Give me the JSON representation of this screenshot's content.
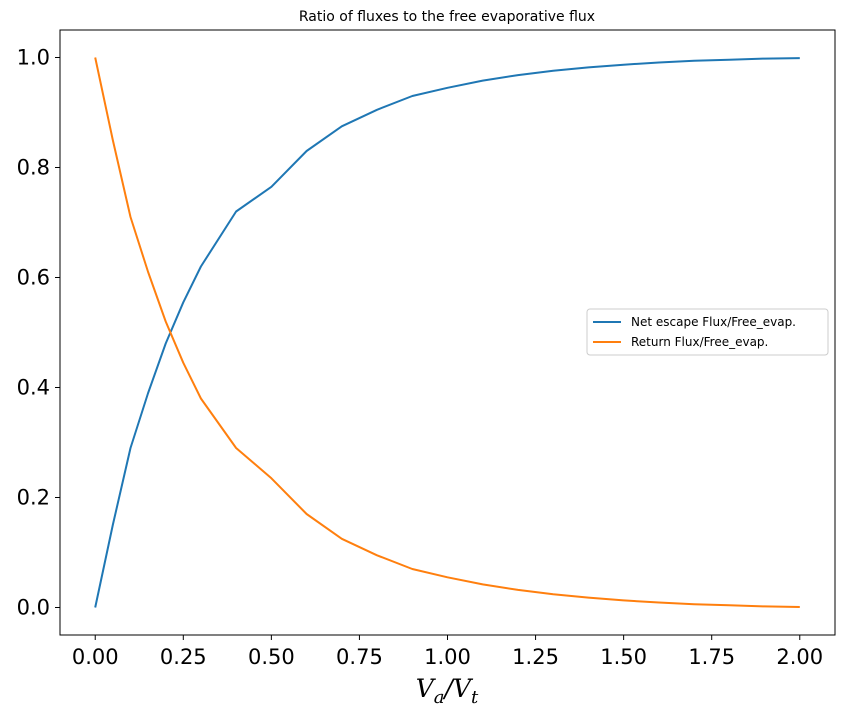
{
  "chart_data": {
    "type": "line",
    "title": "Ratio of fluxes to the free evaporative flux",
    "xlabel": {
      "var1": "V",
      "sub1": "a",
      "slash": "/",
      "var2": "V",
      "sub2": "t"
    },
    "ylabel": "",
    "xlim": [
      -0.1,
      2.1
    ],
    "ylim": [
      -0.05,
      1.05
    ],
    "xticks": [
      "0.00",
      "0.25",
      "0.50",
      "0.75",
      "1.00",
      "1.25",
      "1.50",
      "1.75",
      "2.00"
    ],
    "yticks": [
      "0.0",
      "0.2",
      "0.4",
      "0.6",
      "0.8",
      "1.0"
    ],
    "grid": false,
    "legend_position": "center-right",
    "x": [
      0.0,
      0.05,
      0.1,
      0.15,
      0.2,
      0.25,
      0.3,
      0.4,
      0.5,
      0.6,
      0.7,
      0.8,
      0.9,
      1.0,
      1.1,
      1.2,
      1.3,
      1.4,
      1.5,
      1.6,
      1.7,
      1.8,
      1.9,
      2.0
    ],
    "series": [
      {
        "name": "Net escape Flux/Free_evap.",
        "color": "#1f77b4",
        "values": [
          0.0,
          0.15,
          0.29,
          0.39,
          0.48,
          0.555,
          0.62,
          0.72,
          0.765,
          0.83,
          0.875,
          0.905,
          0.93,
          0.945,
          0.958,
          0.968,
          0.976,
          0.982,
          0.987,
          0.991,
          0.994,
          0.996,
          0.998,
          0.999
        ]
      },
      {
        "name": "Return Flux/Free_evap.",
        "color": "#ff7f0e",
        "values": [
          1.0,
          0.85,
          0.71,
          0.61,
          0.52,
          0.445,
          0.38,
          0.29,
          0.235,
          0.17,
          0.125,
          0.095,
          0.07,
          0.055,
          0.042,
          0.032,
          0.024,
          0.018,
          0.013,
          0.009,
          0.006,
          0.004,
          0.002,
          0.001
        ]
      }
    ]
  }
}
